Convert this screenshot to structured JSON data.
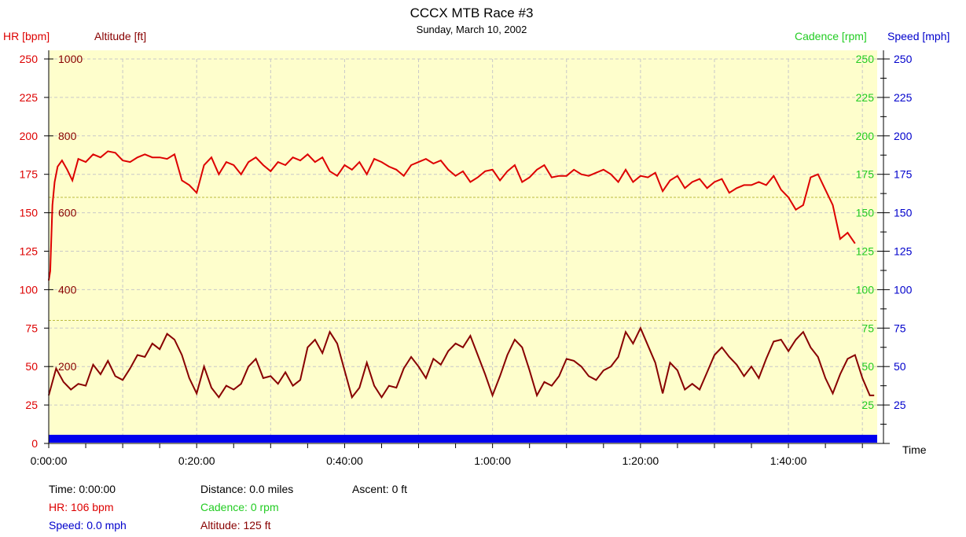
{
  "colors": {
    "hr": "#dd0000",
    "altitude": "#880000",
    "cadence": "#22cc22",
    "speed": "#0000cc",
    "plot_bg": "#fefecc",
    "grid": "#c8c8c8",
    "zone": "#bcbc40"
  },
  "chart_data": {
    "type": "line",
    "title": "CCCX MTB Race #3",
    "subtitle": "Sunday, March 10, 2002",
    "axes": {
      "hr_label": "HR [bpm]",
      "altitude_label": "Altitude [ft]",
      "cadence_label": "Cadence [rpm]",
      "speed_label": "Speed [mph]",
      "time_label": "Time",
      "hr_ticks": [
        "250",
        "225",
        "200",
        "175",
        "150",
        "125",
        "100",
        "75",
        "50",
        "25",
        "0"
      ],
      "altitude_ticks": [
        "1000",
        "800",
        "600",
        "400",
        "200"
      ],
      "cadence_ticks": [
        "250",
        "225",
        "200",
        "175",
        "150",
        "125",
        "100",
        "75",
        "50",
        "25"
      ],
      "speed_ticks": [
        "250",
        "225",
        "200",
        "175",
        "150",
        "125",
        "100",
        "75",
        "50",
        "25"
      ],
      "time_ticks": [
        "0:00:00",
        "0:20:00",
        "0:40:00",
        "1:00:00",
        "1:20:00",
        "1:40:00"
      ],
      "hr_range": [
        0,
        250
      ],
      "altitude_range": [
        0,
        1000
      ],
      "time_range_min": [
        0,
        112
      ],
      "grid": true,
      "hr_zone_lines": [
        160,
        80
      ]
    },
    "series": [
      {
        "name": "HR",
        "unit": "bpm",
        "x_min": [
          0,
          0.2,
          0.5,
          0.8,
          1.2,
          1.8,
          2.5,
          3.2,
          4,
          5,
          6,
          7,
          8,
          9,
          10,
          11,
          12,
          13,
          14,
          15,
          16,
          17,
          18,
          19,
          20,
          21,
          22,
          23,
          24,
          25,
          26,
          27,
          28,
          29,
          30,
          31,
          32,
          33,
          34,
          35,
          36,
          37,
          38,
          39,
          40,
          41,
          42,
          43,
          44,
          45,
          46,
          47,
          48,
          49,
          50,
          51,
          52,
          53,
          54,
          55,
          56,
          57,
          58,
          59,
          60,
          61,
          62,
          63,
          64,
          65,
          66,
          67,
          68,
          69,
          70,
          71,
          72,
          73,
          74,
          75,
          76,
          77,
          78,
          79,
          80,
          81,
          82,
          83,
          84,
          85,
          86,
          87,
          88,
          89,
          90,
          91,
          92,
          93,
          94,
          95,
          96,
          97,
          98,
          99,
          100,
          101,
          102,
          103,
          104,
          105,
          106,
          107,
          108,
          109,
          110,
          110.5,
          111,
          111.6
        ],
        "y": [
          106,
          112,
          155,
          170,
          180,
          184,
          178,
          171,
          185,
          183,
          188,
          186,
          190,
          189,
          184,
          183,
          186,
          188,
          186,
          186,
          185,
          188,
          171,
          168,
          163,
          181,
          186,
          175,
          183,
          181,
          175,
          183,
          186,
          181,
          177,
          183,
          181,
          186,
          184,
          188,
          183,
          186,
          177,
          174,
          181,
          178,
          183,
          175,
          185,
          183,
          180,
          178,
          174,
          181,
          183,
          185,
          182,
          184,
          178,
          174,
          177,
          170,
          173,
          177,
          178,
          171,
          177,
          181,
          170,
          173,
          178,
          181,
          173,
          174,
          174,
          178,
          175,
          174,
          176,
          178,
          175,
          170,
          178,
          170,
          174,
          173,
          176,
          164,
          171,
          174,
          166,
          170,
          172,
          166,
          170,
          172,
          163,
          166,
          168,
          168,
          170,
          168,
          174,
          165,
          160,
          152,
          155,
          173,
          175,
          165,
          155,
          133,
          137,
          130
        ],
        "readout": "HR: 106 bpm"
      },
      {
        "name": "Altitude",
        "unit": "ft",
        "x_min": [
          0,
          1,
          2,
          3,
          4,
          5,
          6,
          7,
          8,
          9,
          10,
          11,
          12,
          13,
          14,
          15,
          16,
          17,
          18,
          19,
          20,
          21,
          22,
          23,
          24,
          25,
          26,
          27,
          28,
          29,
          30,
          31,
          32,
          33,
          34,
          35,
          36,
          37,
          38,
          39,
          40,
          41,
          42,
          43,
          44,
          45,
          46,
          47,
          48,
          49,
          50,
          51,
          52,
          53,
          54,
          55,
          56,
          57,
          58,
          59,
          60,
          61,
          62,
          63,
          64,
          65,
          66,
          67,
          68,
          69,
          70,
          71,
          72,
          73,
          74,
          75,
          76,
          77,
          78,
          79,
          80,
          81,
          82,
          83,
          84,
          85,
          86,
          87,
          88,
          89,
          90,
          91,
          92,
          93,
          94,
          95,
          96,
          97,
          98,
          99,
          100,
          101,
          102,
          103,
          104,
          105,
          106,
          107,
          108,
          109,
          110,
          111,
          111.6
        ],
        "y": [
          125,
          195,
          160,
          140,
          155,
          150,
          205,
          180,
          215,
          175,
          165,
          195,
          230,
          225,
          260,
          245,
          285,
          270,
          230,
          170,
          130,
          200,
          145,
          120,
          150,
          140,
          155,
          200,
          220,
          170,
          175,
          155,
          185,
          150,
          165,
          250,
          270,
          235,
          290,
          260,
          190,
          120,
          145,
          210,
          150,
          120,
          150,
          145,
          195,
          225,
          200,
          170,
          220,
          205,
          240,
          260,
          250,
          280,
          230,
          180,
          125,
          175,
          230,
          270,
          250,
          190,
          125,
          160,
          150,
          175,
          220,
          215,
          200,
          175,
          165,
          190,
          200,
          225,
          290,
          260,
          300,
          255,
          210,
          130,
          210,
          190,
          140,
          155,
          140,
          185,
          230,
          250,
          225,
          205,
          175,
          200,
          170,
          220,
          265,
          270,
          240,
          270,
          290,
          250,
          225,
          170,
          130,
          180,
          220,
          230,
          170,
          125,
          125
        ],
        "readout": "Altitude: 125 ft"
      },
      {
        "name": "Speed",
        "unit": "mph",
        "x_min": [
          0,
          111.6
        ],
        "y": [
          0,
          0
        ],
        "readout": "Speed: 0.0 mph"
      }
    ],
    "readouts": {
      "time": "Time: 0:00:00",
      "distance": "Distance: 0.0 miles",
      "ascent": "Ascent: 0 ft",
      "cadence": "Cadence: 0 rpm"
    }
  }
}
